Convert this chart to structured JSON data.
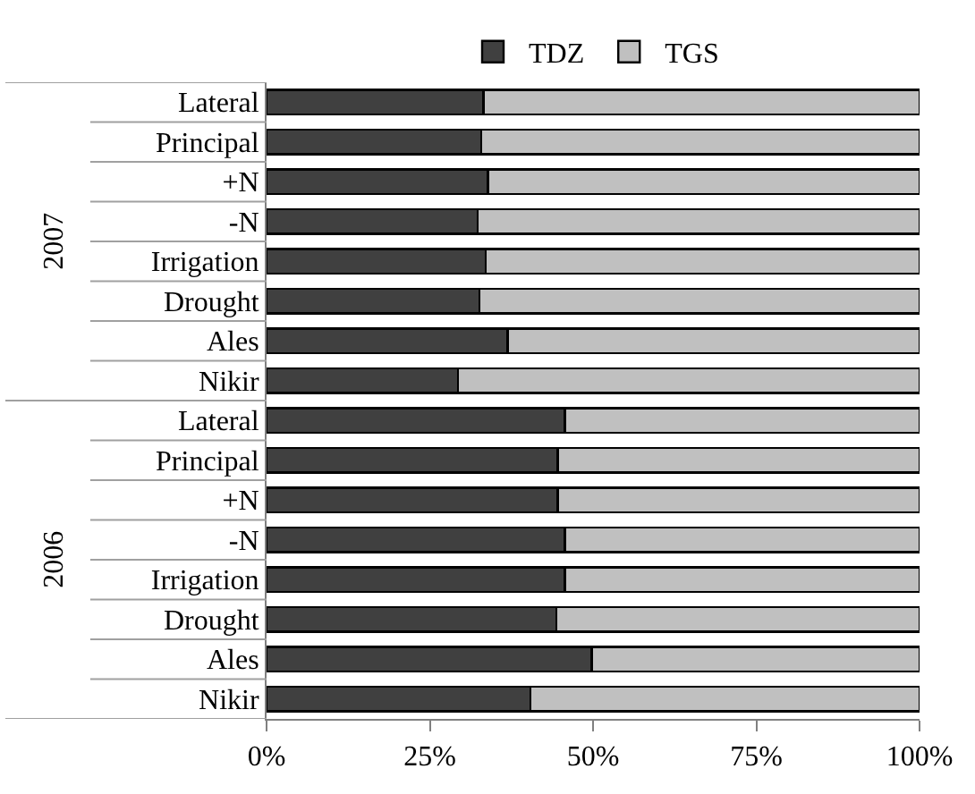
{
  "chart_data": {
    "type": "bar",
    "orientation": "horizontal",
    "stacked": true,
    "categories": [
      "Lateral",
      "Principal",
      "+N",
      "-N",
      "Irrigation",
      "Drought",
      "Ales",
      "Nikir",
      "Lateral",
      "Principal",
      "+N",
      "-N",
      "Irrigation",
      "Drought",
      "Ales",
      "Nikir"
    ],
    "series": [
      {
        "name": "TDZ",
        "color": "#404040",
        "values": [
          33.2,
          32.9,
          33.9,
          32.3,
          33.6,
          32.6,
          36.9,
          29.3,
          45.7,
          44.6,
          44.6,
          45.7,
          45.7,
          44.4,
          49.8,
          40.4
        ]
      },
      {
        "name": "TGS",
        "color": "#c0c0c0",
        "values": [
          66.8,
          67.1,
          66.1,
          67.7,
          66.4,
          67.4,
          63.1,
          70.7,
          54.3,
          55.4,
          55.4,
          54.3,
          54.3,
          55.6,
          50.2,
          59.6
        ]
      }
    ],
    "xlim": [
      0,
      100
    ],
    "xticks": [
      {
        "value": 0,
        "label": "0%"
      },
      {
        "value": 25,
        "label": "25%"
      },
      {
        "value": 50,
        "label": "50%"
      },
      {
        "value": 75,
        "label": "75%"
      },
      {
        "value": 100,
        "label": "100%"
      }
    ],
    "annotations": [
      "2007",
      "2006"
    ],
    "legend": "top"
  }
}
